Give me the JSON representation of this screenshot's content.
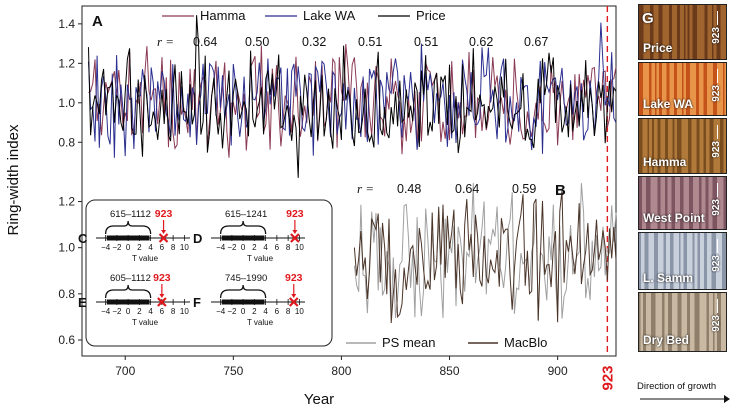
{
  "chart_data": [
    {
      "panel": "A",
      "type": "line",
      "ylabel": "Ring-width index",
      "xlabel": "Year",
      "xlim": [
        680,
        927
      ],
      "ylim": [
        0.55,
        1.5
      ],
      "x_ticks": [
        "700",
        "750",
        "800",
        "850",
        "900"
      ],
      "y_ticks": [
        "0.8",
        "1.0",
        "1.2",
        "1.4"
      ],
      "y_tick_values": [
        0.8,
        1.0,
        1.2,
        1.4
      ],
      "x_tick_values": [
        700,
        750,
        800,
        850,
        900
      ],
      "x_start": 683,
      "x_end": 927,
      "r_label": "r =",
      "r_values": [
        "0.64",
        "0.50",
        "0.32",
        "0.51",
        "0.51",
        "0.62",
        "0.67"
      ],
      "series": [
        {
          "name": "Hamma",
          "color": "#8a3a52",
          "seed": 11
        },
        {
          "name": "Lake WA",
          "color": "#2b2f8f",
          "seed": 29
        },
        {
          "name": "Price",
          "color": "#000000",
          "seed": 47
        }
      ]
    },
    {
      "panel": "B",
      "type": "line",
      "x_start": 806,
      "x_end": 927,
      "ylim": [
        0.55,
        1.3
      ],
      "y_ticks": [
        "0.6",
        "0.8",
        "1.0",
        "1.2"
      ],
      "y_tick_values": [
        0.6,
        0.8,
        1.0,
        1.2
      ],
      "r_label": "r =",
      "r_values": [
        "0.48",
        "0.64",
        "0.59"
      ],
      "series": [
        {
          "name": "PS mean",
          "color": "#a0a0a0",
          "seed": 63
        },
        {
          "name": "MacBlo",
          "color": "#4a3428",
          "seed": 81
        }
      ]
    }
  ],
  "event_year": "923",
  "event_year_value": 923,
  "event_color": "#e0191f",
  "insets": [
    {
      "letter": "C",
      "range": "615–1112",
      "tick_labels": [
        "−4",
        "−2",
        "0",
        "2",
        "4",
        "6",
        "8",
        "10"
      ],
      "axis_label": "T value",
      "marker": "923",
      "marker_value": 6.3,
      "hist_lo": -4,
      "hist_hi": 4
    },
    {
      "letter": "D",
      "range": "615–1241",
      "tick_labels": [
        "−4",
        "−2",
        "0",
        "2",
        "4",
        "6",
        "8",
        "10"
      ],
      "axis_label": "T value",
      "marker": "923",
      "marker_value": 9.2,
      "hist_lo": -4,
      "hist_hi": 4
    },
    {
      "letter": "E",
      "range": "605–1112",
      "tick_labels": [
        "−4",
        "−2",
        "0",
        "2",
        "4",
        "6",
        "8",
        "10"
      ],
      "axis_label": "T value",
      "marker": "923",
      "marker_value": 6.0,
      "hist_lo": -4,
      "hist_hi": 4
    },
    {
      "letter": "F",
      "range": "745–1990",
      "tick_labels": [
        "−4",
        "−2",
        "0",
        "2",
        "4",
        "6",
        "8",
        "10"
      ],
      "axis_label": "T value",
      "marker": "923",
      "marker_value": 9.0,
      "hist_lo": -4,
      "hist_hi": 4
    }
  ],
  "tree_samples": [
    {
      "label": "Price",
      "year": "923",
      "color_a": "#6b3a1a",
      "color_b": "#a0652e"
    },
    {
      "label": "Lake WA",
      "year": "923",
      "color_a": "#c4531a",
      "color_b": "#e8954a"
    },
    {
      "label": "Hamma",
      "year": "923",
      "color_a": "#7a4d1e",
      "color_b": "#b27a3a"
    },
    {
      "label": "West Point",
      "year": "923",
      "color_a": "#7d5560",
      "color_b": "#b08890"
    },
    {
      "label": "L. Samm",
      "year": "923",
      "color_a": "#8b95a8",
      "color_b": "#c8d0dc"
    },
    {
      "label": "Dry Bed",
      "year": "923",
      "color_a": "#8f7e6a",
      "color_b": "#c9b9a2"
    }
  ],
  "panel_g_letter": "G",
  "direction_label": "Direction of growth"
}
